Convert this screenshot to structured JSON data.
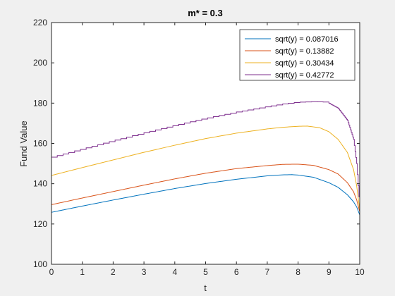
{
  "chart_data": {
    "type": "line",
    "title": "m* = 0.3",
    "xlabel": "t",
    "ylabel": "Fund Value",
    "xlim": [
      0,
      10
    ],
    "ylim": [
      100,
      220
    ],
    "xticks": [
      0,
      1,
      2,
      3,
      4,
      5,
      6,
      7,
      8,
      9,
      10
    ],
    "yticks": [
      100,
      120,
      140,
      160,
      180,
      200,
      220
    ],
    "grid": false,
    "legend_position": "top-right",
    "series": [
      {
        "name": "sqrt(y) = 0.087016",
        "color": "#0072BD",
        "steps": 0,
        "points": [
          [
            0,
            125.8
          ],
          [
            1,
            128.9
          ],
          [
            2,
            131.9
          ],
          [
            3,
            134.8
          ],
          [
            4,
            137.6
          ],
          [
            5,
            140.1
          ],
          [
            6,
            142.2
          ],
          [
            7,
            143.9
          ],
          [
            7.5,
            144.4
          ],
          [
            7.8,
            144.5
          ],
          [
            8,
            144.3
          ],
          [
            8.5,
            143.2
          ],
          [
            9,
            140.5
          ],
          [
            9.3,
            138.2
          ],
          [
            9.6,
            134.5
          ],
          [
            9.8,
            131.0
          ],
          [
            9.9,
            128.5
          ],
          [
            10,
            124.5
          ]
        ]
      },
      {
        "name": "sqrt(y) = 0.13882",
        "color": "#D95319",
        "steps": 0,
        "points": [
          [
            0,
            129.6
          ],
          [
            1,
            132.9
          ],
          [
            2,
            136.1
          ],
          [
            3,
            139.3
          ],
          [
            4,
            142.4
          ],
          [
            5,
            145.2
          ],
          [
            6,
            147.5
          ],
          [
            7,
            149.0
          ],
          [
            7.5,
            149.6
          ],
          [
            8,
            149.7
          ],
          [
            8.5,
            149.1
          ],
          [
            9,
            147.0
          ],
          [
            9.3,
            144.8
          ],
          [
            9.6,
            140.5
          ],
          [
            9.8,
            136.0
          ],
          [
            9.9,
            132.0
          ],
          [
            10,
            126.0
          ]
        ]
      },
      {
        "name": "sqrt(y) = 0.30434",
        "color": "#EDB120",
        "steps": 0,
        "points": [
          [
            0,
            144.1
          ],
          [
            1,
            148.0
          ],
          [
            2,
            151.8
          ],
          [
            3,
            155.6
          ],
          [
            4,
            159.1
          ],
          [
            5,
            162.4
          ],
          [
            6,
            165.1
          ],
          [
            7,
            167.2
          ],
          [
            7.5,
            168.0
          ],
          [
            8,
            168.5
          ],
          [
            8.3,
            168.6
          ],
          [
            8.7,
            167.8
          ],
          [
            9,
            165.8
          ],
          [
            9.3,
            162.0
          ],
          [
            9.6,
            155.5
          ],
          [
            9.8,
            147.0
          ],
          [
            9.9,
            139.0
          ],
          [
            10,
            127.0
          ]
        ]
      },
      {
        "name": "sqrt(y) = 0.42772",
        "color": "#7E2F8E",
        "steps": 48,
        "points": [
          [
            0,
            153.2
          ],
          [
            1,
            157.3
          ],
          [
            2,
            161.4
          ],
          [
            3,
            165.3
          ],
          [
            4,
            169.0
          ],
          [
            5,
            172.5
          ],
          [
            6,
            175.6
          ],
          [
            7,
            178.3
          ],
          [
            7.5,
            179.6
          ],
          [
            8,
            180.5
          ],
          [
            8.5,
            180.7
          ],
          [
            8.8,
            180.6
          ],
          [
            9,
            180.0
          ],
          [
            9.3,
            177.5
          ],
          [
            9.6,
            171.5
          ],
          [
            9.8,
            162.0
          ],
          [
            9.9,
            150.0
          ],
          [
            10,
            128.0
          ]
        ]
      }
    ]
  }
}
